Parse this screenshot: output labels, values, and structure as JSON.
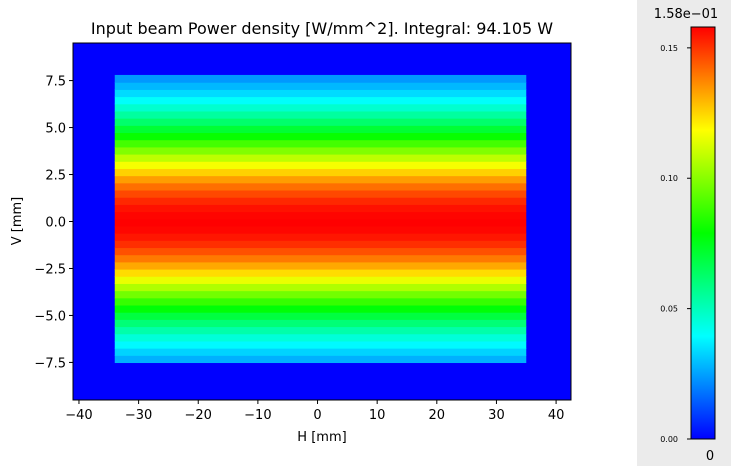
{
  "chart_data": {
    "type": "heatmap",
    "title": "Input beam Power density [W/mm^2]. Integral: 94.105 W",
    "xlabel": "H [mm]",
    "ylabel": "V [mm]",
    "xlim": [
      -41,
      42.5
    ],
    "ylim": [
      -9.5,
      9.5
    ],
    "x_ticks": [
      -40,
      -30,
      -20,
      -10,
      0,
      10,
      20,
      30,
      40
    ],
    "x_tick_labels": [
      "−40",
      "−30",
      "−20",
      "−10",
      "0",
      "10",
      "20",
      "30",
      "40"
    ],
    "y_ticks": [
      7.5,
      5.0,
      2.5,
      0.0,
      -2.5,
      -5.0,
      -7.5
    ],
    "y_tick_labels": [
      "7.5",
      "5.0",
      "2.5",
      "0.0",
      "−2.5",
      "−5.0",
      "−7.5"
    ],
    "beam": {
      "h_range": [
        -34,
        35
      ],
      "v_range": [
        -7.5,
        7.8
      ],
      "peak_density": 0.158,
      "profile": "gaussian-in-V",
      "v_sigma": 3.9
    },
    "background_value": 0,
    "colormap": [
      "#0000ff",
      "#0080ff",
      "#00ffff",
      "#00ff80",
      "#00ff00",
      "#80ff00",
      "#ffff00",
      "#ff8000",
      "#ff0000"
    ],
    "colorbar": {
      "max_label": "1.58e−01",
      "min_label": "0",
      "ticks": [
        0.0,
        0.05,
        0.1,
        0.15
      ],
      "tick_labels": [
        "0.00",
        "0.05",
        "0.10",
        "0.15"
      ],
      "range": [
        0,
        0.158
      ]
    }
  }
}
